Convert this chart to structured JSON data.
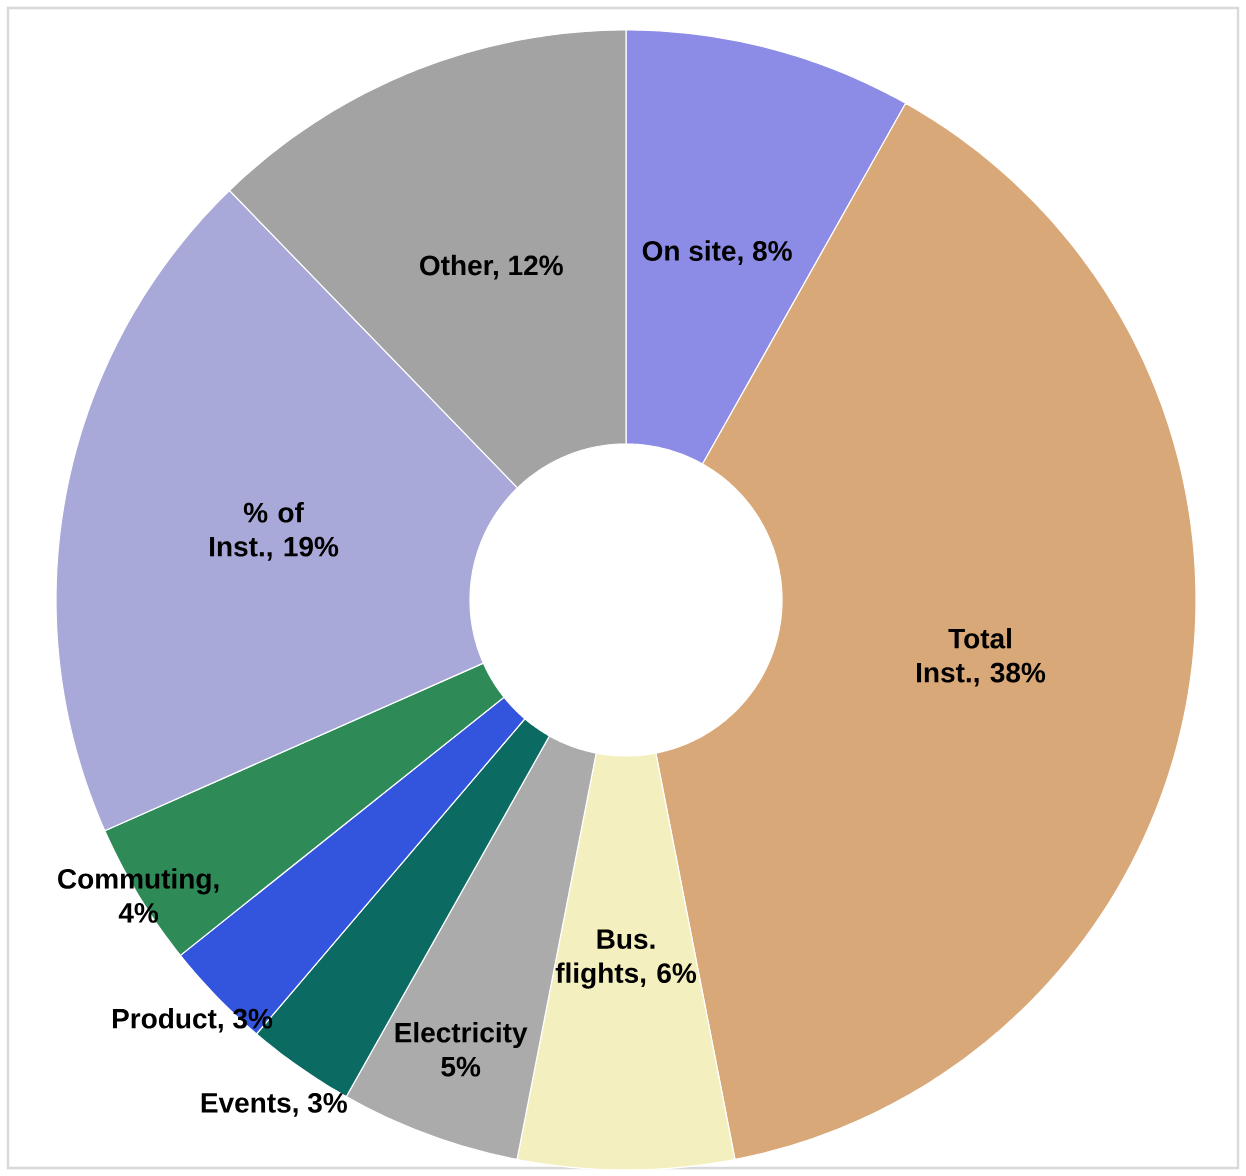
{
  "chart_data": {
    "type": "donut",
    "categories": [
      "On site, 8%",
      "Total Inst., 38%",
      "Bus. flights, 6%",
      "Electricity 5%",
      "Events, 3%",
      "Product, 3%",
      "Commuting, 4%",
      "% of Inst., 19%",
      "Other, 12%"
    ],
    "values": [
      8,
      38,
      6,
      5,
      3,
      3,
      4,
      19,
      12
    ],
    "colors": [
      "#8c8ce6",
      "#d9a878",
      "#f4efbf",
      "#ababab",
      "#0b6b63",
      "#3355dd",
      "#2e8b57",
      "#a9a9d9",
      "#a3a3a3"
    ]
  }
}
